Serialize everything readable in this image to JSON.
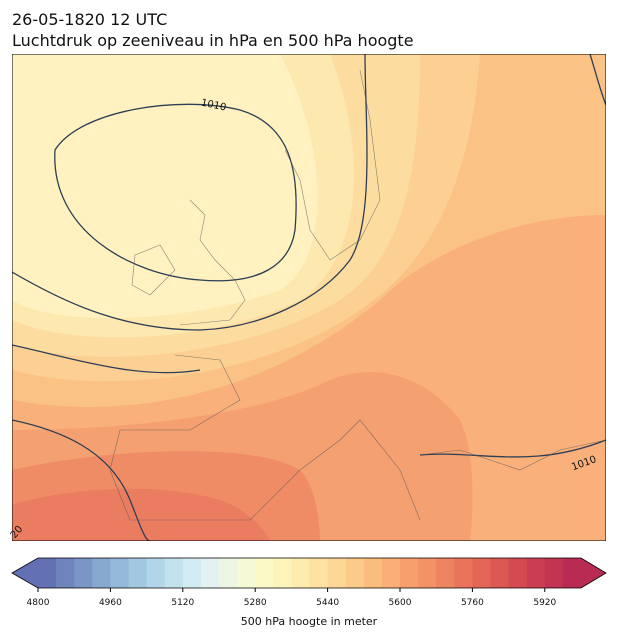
{
  "title": "26-05-1820 12 UTC",
  "subtitle": "Luchtdruk op zeeniveau in hPa en 500 hPa hoogte",
  "map": {
    "contour_labels": [
      1010,
      1010,
      20
    ]
  },
  "colorbar": {
    "label": "500 hPa hoogte in meter",
    "range": [
      4800,
      6000
    ],
    "ticks": [
      4800,
      4960,
      5120,
      5280,
      5440,
      5600,
      5760,
      5920
    ],
    "colors": [
      "#6470b4",
      "#6f83bd",
      "#7b95c6",
      "#87a8cf",
      "#94b8d8",
      "#a2c8e0",
      "#b2d6e8",
      "#c3e2ee",
      "#d3ebf2",
      "#e2f2f0",
      "#edf6e3",
      "#f5f9d4",
      "#fbfac6",
      "#fdf4bb",
      "#fdecae",
      "#fde2a1",
      "#fdd795",
      "#fccb89",
      "#fbbd7e",
      "#f9af75",
      "#f6a06d",
      "#f39266",
      "#ee8360",
      "#e9745b",
      "#e36656",
      "#dc5853",
      "#d44a51",
      "#cb3e51",
      "#c13452",
      "#b82b53"
    ]
  }
}
